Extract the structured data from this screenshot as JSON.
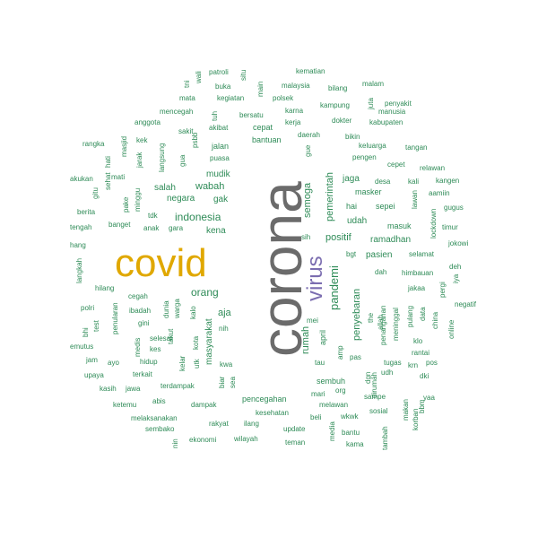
{
  "colors": {
    "dominant": "#6b6b6b",
    "secondary": "#e0a800",
    "tertiary": "#7b6db0",
    "small": "#2e8b57"
  },
  "words": [
    {
      "text": "corona",
      "color": "dominant"
    },
    {
      "text": "covid",
      "color": "secondary"
    },
    {
      "text": "virus",
      "color": "tertiary"
    },
    {
      "text": "orang",
      "color": "small"
    },
    {
      "text": "indonesia",
      "color": "small"
    },
    {
      "text": "wabah",
      "color": "small"
    },
    {
      "text": "pandemi",
      "color": "small"
    },
    {
      "text": "positif",
      "color": "small"
    },
    {
      "text": "pemerintah",
      "color": "small"
    },
    {
      "text": "rumah",
      "color": "small"
    },
    {
      "text": "semoga",
      "color": "small"
    },
    {
      "text": "penyebaran",
      "color": "small"
    },
    {
      "text": "aja",
      "color": "small"
    },
    {
      "text": "masyarakat",
      "color": "small"
    },
    {
      "text": "kena",
      "color": "small"
    },
    {
      "text": "udah",
      "color": "small"
    },
    {
      "text": "pasien",
      "color": "small"
    },
    {
      "text": "ramadhan",
      "color": "small"
    },
    {
      "text": "negara",
      "color": "small"
    },
    {
      "text": "mudik",
      "color": "small"
    },
    {
      "text": "gak",
      "color": "small"
    },
    {
      "text": "salah",
      "color": "small"
    },
    {
      "text": "jaga",
      "color": "small"
    },
    {
      "text": "masker",
      "color": "small"
    },
    {
      "text": "hai",
      "color": "small"
    },
    {
      "text": "sepei",
      "color": "small"
    },
    {
      "text": "masuk",
      "color": "small"
    },
    {
      "text": "april",
      "color": "small"
    },
    {
      "text": "penanganan",
      "color": "small"
    },
    {
      "text": "meninggal",
      "color": "small"
    },
    {
      "text": "sembuh",
      "color": "small"
    },
    {
      "text": "pencegahan",
      "color": "small"
    },
    {
      "text": "kesehatan",
      "color": "small"
    },
    {
      "text": "bantuan",
      "color": "small"
    },
    {
      "text": "cepat",
      "color": "small"
    },
    {
      "text": "jalan",
      "color": "small"
    },
    {
      "text": "puasa",
      "color": "small"
    },
    {
      "text": "dampak",
      "color": "small"
    },
    {
      "text": "rakyat",
      "color": "small"
    },
    {
      "text": "update",
      "color": "small"
    },
    {
      "text": "melawan",
      "color": "small"
    },
    {
      "text": "kematian",
      "color": "small"
    },
    {
      "text": "patroli",
      "color": "small"
    },
    {
      "text": "situ",
      "color": "small"
    },
    {
      "text": "buka",
      "color": "small"
    },
    {
      "text": "main",
      "color": "small"
    },
    {
      "text": "malaysia",
      "color": "small"
    },
    {
      "text": "bilang",
      "color": "small"
    },
    {
      "text": "malam",
      "color": "small"
    },
    {
      "text": "tni",
      "color": "small"
    },
    {
      "text": "wali",
      "color": "small"
    },
    {
      "text": "mata",
      "color": "small"
    },
    {
      "text": "kegiatan",
      "color": "small"
    },
    {
      "text": "polsek",
      "color": "small"
    },
    {
      "text": "kampung",
      "color": "small"
    },
    {
      "text": "juta",
      "color": "small"
    },
    {
      "text": "penyakit",
      "color": "small"
    },
    {
      "text": "mencegah",
      "color": "small"
    },
    {
      "text": "tuh",
      "color": "small"
    },
    {
      "text": "bersatu",
      "color": "small"
    },
    {
      "text": "karna",
      "color": "small"
    },
    {
      "text": "manusia",
      "color": "small"
    },
    {
      "text": "anggota",
      "color": "small"
    },
    {
      "text": "akibat",
      "color": "small"
    },
    {
      "text": "kerja",
      "color": "small"
    },
    {
      "text": "dokter",
      "color": "small"
    },
    {
      "text": "kabupaten",
      "color": "small"
    },
    {
      "text": "sakit",
      "color": "small"
    },
    {
      "text": "daerah",
      "color": "small"
    },
    {
      "text": "bikin",
      "color": "small"
    },
    {
      "text": "rangka",
      "color": "small"
    },
    {
      "text": "masjid",
      "color": "small"
    },
    {
      "text": "kek",
      "color": "small"
    },
    {
      "text": "langsung",
      "color": "small"
    },
    {
      "text": "psbb",
      "color": "small"
    },
    {
      "text": "keluarga",
      "color": "small"
    },
    {
      "text": "tangan",
      "color": "small"
    },
    {
      "text": "hati",
      "color": "small"
    },
    {
      "text": "jarak",
      "color": "small"
    },
    {
      "text": "gua",
      "color": "small"
    },
    {
      "text": "gue",
      "color": "small"
    },
    {
      "text": "pengen",
      "color": "small"
    },
    {
      "text": "cepet",
      "color": "small"
    },
    {
      "text": "relawan",
      "color": "small"
    },
    {
      "text": "akukan",
      "color": "small"
    },
    {
      "text": "mati",
      "color": "small"
    },
    {
      "text": "sehat",
      "color": "small"
    },
    {
      "text": "desa",
      "color": "small"
    },
    {
      "text": "kali",
      "color": "small"
    },
    {
      "text": "kangen",
      "color": "small"
    },
    {
      "text": "gitu",
      "color": "small"
    },
    {
      "text": "minggu",
      "color": "small"
    },
    {
      "text": "pake",
      "color": "small"
    },
    {
      "text": "aamiin",
      "color": "small"
    },
    {
      "text": "lawan",
      "color": "small"
    },
    {
      "text": "berita",
      "color": "small"
    },
    {
      "text": "gugus",
      "color": "small"
    },
    {
      "text": "tdk",
      "color": "small"
    },
    {
      "text": "tengah",
      "color": "small"
    },
    {
      "text": "banget",
      "color": "small"
    },
    {
      "text": "anak",
      "color": "small"
    },
    {
      "text": "gara",
      "color": "small"
    },
    {
      "text": "timur",
      "color": "small"
    },
    {
      "text": "sih",
      "color": "small"
    },
    {
      "text": "lockdown",
      "color": "small"
    },
    {
      "text": "hang",
      "color": "small"
    },
    {
      "text": "jokowi",
      "color": "small"
    },
    {
      "text": "bgt",
      "color": "small"
    },
    {
      "text": "selamat",
      "color": "small"
    },
    {
      "text": "langkah",
      "color": "small"
    },
    {
      "text": "deh",
      "color": "small"
    },
    {
      "text": "dah",
      "color": "small"
    },
    {
      "text": "himbauan",
      "color": "small"
    },
    {
      "text": "iya",
      "color": "small"
    },
    {
      "text": "hilang",
      "color": "small"
    },
    {
      "text": "jakaa",
      "color": "small"
    },
    {
      "text": "pergi",
      "color": "small"
    },
    {
      "text": "cegah",
      "color": "small"
    },
    {
      "text": "kalo",
      "color": "small"
    },
    {
      "text": "warga",
      "color": "small"
    },
    {
      "text": "dunia",
      "color": "small"
    },
    {
      "text": "negatif",
      "color": "small"
    },
    {
      "text": "polri",
      "color": "small"
    },
    {
      "text": "ibadah",
      "color": "small"
    },
    {
      "text": "tugas",
      "color": "small"
    },
    {
      "text": "data",
      "color": "small"
    },
    {
      "text": "gini",
      "color": "small"
    },
    {
      "text": "pulang",
      "color": "small"
    },
    {
      "text": "china",
      "color": "small"
    },
    {
      "text": "bhi",
      "color": "small"
    },
    {
      "text": "penularan",
      "color": "small"
    },
    {
      "text": "nih",
      "color": "small"
    },
    {
      "text": "kota",
      "color": "small"
    },
    {
      "text": "mei",
      "color": "small"
    },
    {
      "text": "the",
      "color": "small"
    },
    {
      "text": "allah",
      "color": "small"
    },
    {
      "text": "online",
      "color": "small"
    },
    {
      "text": "test",
      "color": "small"
    },
    {
      "text": "selesai",
      "color": "small"
    },
    {
      "text": "klo",
      "color": "small"
    },
    {
      "text": "rantai",
      "color": "small"
    },
    {
      "text": "emutus",
      "color": "small"
    },
    {
      "text": "kes",
      "color": "small"
    },
    {
      "text": "takut",
      "color": "small"
    },
    {
      "text": "utk",
      "color": "small"
    },
    {
      "text": "amp",
      "color": "small"
    },
    {
      "text": "jam",
      "color": "small"
    },
    {
      "text": "medis",
      "color": "small"
    },
    {
      "text": "hidup",
      "color": "small"
    },
    {
      "text": "kelar",
      "color": "small"
    },
    {
      "text": "pos",
      "color": "small"
    },
    {
      "text": "ayo",
      "color": "small"
    },
    {
      "text": "tau",
      "color": "small"
    },
    {
      "text": "pas",
      "color": "small"
    },
    {
      "text": "krn",
      "color": "small"
    },
    {
      "text": "upaya",
      "color": "small"
    },
    {
      "text": "terkait",
      "color": "small"
    },
    {
      "text": "kwa",
      "color": "small"
    },
    {
      "text": "dki",
      "color": "small"
    },
    {
      "text": "kasih",
      "color": "small"
    },
    {
      "text": "jawa",
      "color": "small"
    },
    {
      "text": "terdampak",
      "color": "small"
    },
    {
      "text": "biar",
      "color": "small"
    },
    {
      "text": "sea",
      "color": "small"
    },
    {
      "text": "dgn",
      "color": "small"
    },
    {
      "text": "udh",
      "color": "small"
    },
    {
      "text": "dirumah",
      "color": "small"
    },
    {
      "text": "mari",
      "color": "small"
    },
    {
      "text": "org",
      "color": "small"
    },
    {
      "text": "sampe",
      "color": "small"
    },
    {
      "text": "yaa",
      "color": "small"
    },
    {
      "text": "abis",
      "color": "small"
    },
    {
      "text": "ketemu",
      "color": "small"
    },
    {
      "text": "sosial",
      "color": "small"
    },
    {
      "text": "bbm",
      "color": "small"
    },
    {
      "text": "makan",
      "color": "small"
    },
    {
      "text": "korban",
      "color": "small"
    },
    {
      "text": "melaksanakan",
      "color": "small"
    },
    {
      "text": "ilang",
      "color": "small"
    },
    {
      "text": "beli",
      "color": "small"
    },
    {
      "text": "wkwk",
      "color": "small"
    },
    {
      "text": "sembako",
      "color": "small"
    },
    {
      "text": "bantu",
      "color": "small"
    },
    {
      "text": "media",
      "color": "small"
    },
    {
      "text": "nin",
      "color": "small"
    },
    {
      "text": "ekonomi",
      "color": "small"
    },
    {
      "text": "wilayah",
      "color": "small"
    },
    {
      "text": "teman",
      "color": "small"
    },
    {
      "text": "kama",
      "color": "small"
    },
    {
      "text": "tambah",
      "color": "small"
    }
  ]
}
